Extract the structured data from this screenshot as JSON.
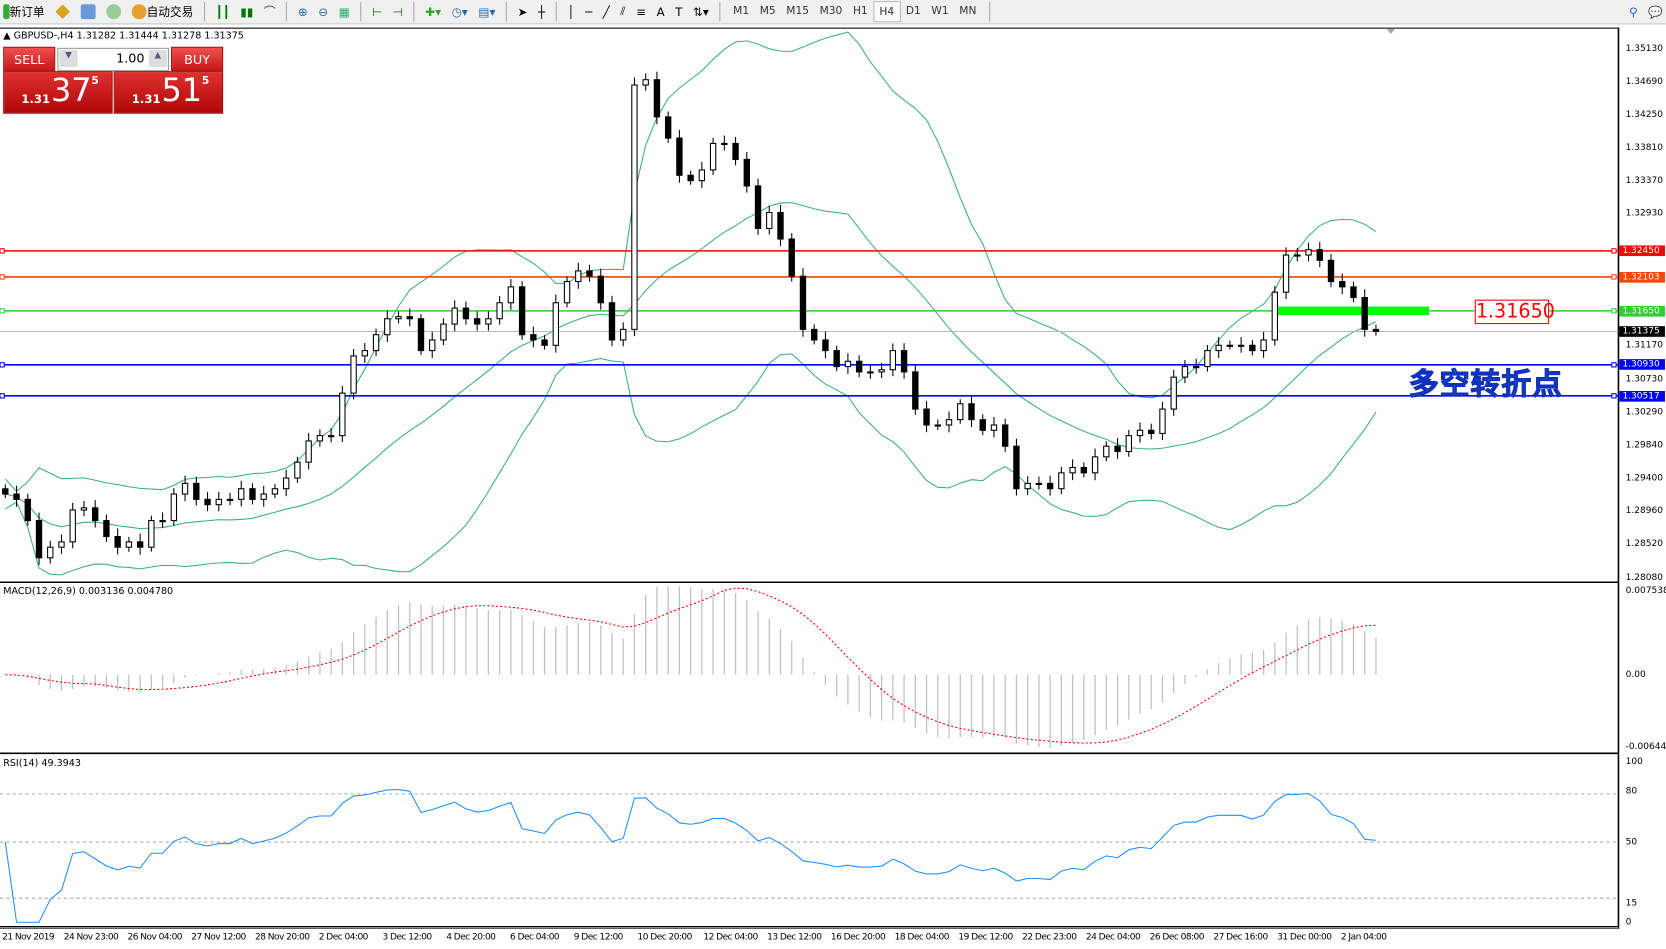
{
  "toolbar": {
    "new_order": "新订单",
    "auto_trading": "自动交易",
    "timeframes": [
      "M1",
      "M5",
      "M15",
      "M30",
      "H1",
      "H4",
      "D1",
      "W1",
      "MN"
    ],
    "active_timeframe": "H4"
  },
  "chart": {
    "header": "GBPUSD-,H4  1.31282 1.31444 1.31278 1.31375",
    "trade_panel": {
      "sell_label": "SELL",
      "buy_label": "BUY",
      "lot": "1.00",
      "bid_prefix": "1.31",
      "bid_big": "37",
      "bid_sup": "5",
      "ask_prefix": "1.31",
      "ask_big": "51",
      "ask_sup": "5"
    },
    "price_axis": [
      "1.35130",
      "1.34690",
      "1.34250",
      "1.33810",
      "1.33370",
      "1.32930",
      "1.31170",
      "1.30730",
      "1.30290",
      "1.29840",
      "1.29400",
      "1.28960",
      "1.28520",
      "1.28080"
    ],
    "levels": [
      {
        "price": "1.32450",
        "color": "#ff0000"
      },
      {
        "price": "1.32103",
        "color": "#ff4500"
      },
      {
        "price": "1.31650",
        "color": "#32cd32"
      },
      {
        "price": "1.30930",
        "color": "#0000ff"
      },
      {
        "price": "1.30517",
        "color": "#0000ff"
      }
    ],
    "bid_line": {
      "price": "1.31375",
      "color": "#000000"
    },
    "annotation_price": "1.31650",
    "annotation_text": "多空转折点",
    "time_axis": [
      "21 Nov 2019",
      "24 Nov 23:00",
      "26 Nov 04:00",
      "27 Nov 12:00",
      "28 Nov 20:00",
      "2 Dec 04:00",
      "3 Dec 12:00",
      "4 Dec 20:00",
      "6 Dec 04:00",
      "9 Dec 12:00",
      "10 Dec 20:00",
      "12 Dec 04:00",
      "13 Dec 12:00",
      "16 Dec 20:00",
      "18 Dec 04:00",
      "19 Dec 12:00",
      "22 Dec 23:00",
      "24 Dec 04:00",
      "26 Dec 08:00",
      "27 Dec 16:00",
      "31 Dec 00:00",
      "2 Jan 04:00"
    ],
    "macd": {
      "label": "MACD(12,26,9) 0.003136 0.004780",
      "axis": [
        "0.007538",
        "0.00",
        "-0.006446"
      ]
    },
    "rsi": {
      "label": "RSI(14) 49.3943",
      "axis": [
        "100",
        "80",
        "50",
        "15",
        "0"
      ]
    }
  },
  "chart_data": {
    "type": "candlestick",
    "symbol": "GBPUSD",
    "timeframe": "H4",
    "ylim": [
      1.2808,
      1.3513
    ],
    "closes": [
      1.29207,
      1.29136,
      1.28853,
      1.28357,
      1.28498,
      1.28569,
      1.28994,
      1.29023,
      1.28853,
      1.2864,
      1.28498,
      1.28569,
      1.28498,
      1.28853,
      1.28853,
      1.29207,
      1.29349,
      1.29136,
      1.29065,
      1.29136,
      1.29136,
      1.29278,
      1.29136,
      1.29207,
      1.29278,
      1.2942,
      1.29632,
      1.29915,
      1.29986,
      1.29986,
      1.30553,
      1.31049,
      1.3112,
      1.31332,
      1.31545,
      1.31573,
      1.31545,
      1.3112,
      1.31262,
      1.31474,
      1.31687,
      1.31545,
      1.31474,
      1.31545,
      1.31758,
      1.3197,
      1.31332,
      1.31262,
      1.31191,
      1.31758,
      1.32041,
      1.32183,
      1.32112,
      1.31758,
      1.31262,
      1.31403,
      1.34662,
      1.34733,
      1.34237,
      1.33954,
      1.33458,
      1.33387,
      1.33529,
      1.33883,
      1.33883,
      1.3367,
      1.33316,
      1.32749,
      1.32962,
      1.32608,
      1.32112,
      1.31403,
      1.31262,
      1.3112,
      1.30907,
      1.30978,
      1.30836,
      1.30836,
      1.30865,
      1.3112,
      1.30836,
      1.3034,
      1.30128,
      1.30128,
      1.30199,
      1.30411,
      1.30199,
      1.30057,
      1.30128,
      1.29845,
      1.29278,
      1.29349,
      1.29349,
      1.29278,
      1.2949,
      1.29561,
      1.2949,
      1.29703,
      1.29845,
      1.29774,
      1.29986,
      1.30057,
      1.30015,
      1.3034,
      1.30766,
      1.30907,
      1.30907,
      1.3112,
      1.31191,
      1.31191,
      1.31191,
      1.3112,
      1.31262,
      1.31899,
      1.32395,
      1.32395,
      1.32466,
      1.32324,
      1.32041,
      1.3197,
      1.31828,
      1.31403,
      1.31375
    ],
    "indicators": [
      "Bollinger Bands(20,2)",
      "MACD(12,26,9)",
      "RSI(14)"
    ]
  }
}
